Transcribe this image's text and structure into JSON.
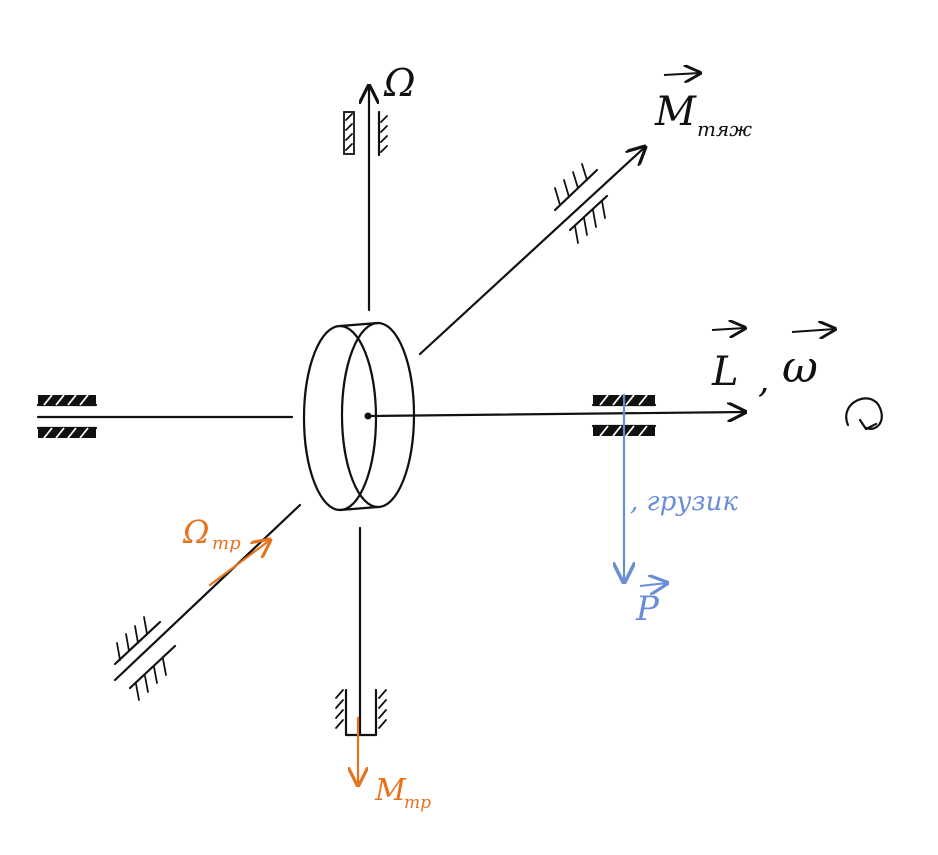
{
  "labels": {
    "omega_cap": "Ω",
    "m_main": "M",
    "m_sub": "тяж",
    "l_letter": "L",
    "comma": ",",
    "w_letter": "ω",
    "omega_tr_main": "Ω",
    "omega_tr_sub": "тр",
    "m_tr_main": "M",
    "m_tr_sub": "тр",
    "gruzik": ", грузик",
    "p_letter": "P"
  },
  "colors": {
    "ink": "#111111",
    "orange": "#E8731E",
    "blue": "#6A8DD8"
  }
}
